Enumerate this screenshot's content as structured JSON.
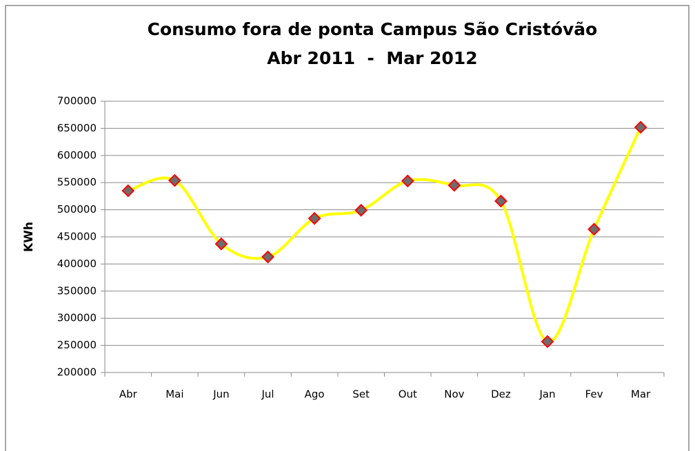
{
  "chart_data": {
    "type": "line",
    "title": "Consumo fora de ponta Campus São Cristóvão",
    "subtitle": "Abr 2011  -  Mar 2012",
    "y_label": "KWh",
    "categories": [
      "Abr",
      "Mai",
      "Jun",
      "Jul",
      "Ago",
      "Set",
      "Out",
      "Nov",
      "Dez",
      "Jan",
      "Fev",
      "Mar"
    ],
    "series": [
      {
        "name": "KWh",
        "color": "#ffff00",
        "values": [
          535000,
          554000,
          437000,
          413000,
          484000,
          499000,
          553000,
          545000,
          516000,
          257000,
          464000,
          652000
        ]
      }
    ],
    "ylim": [
      200000,
      700000
    ],
    "yticks": [
      200000,
      250000,
      300000,
      350000,
      400000,
      450000,
      500000,
      550000,
      600000,
      650000,
      700000
    ],
    "grid": true
  }
}
